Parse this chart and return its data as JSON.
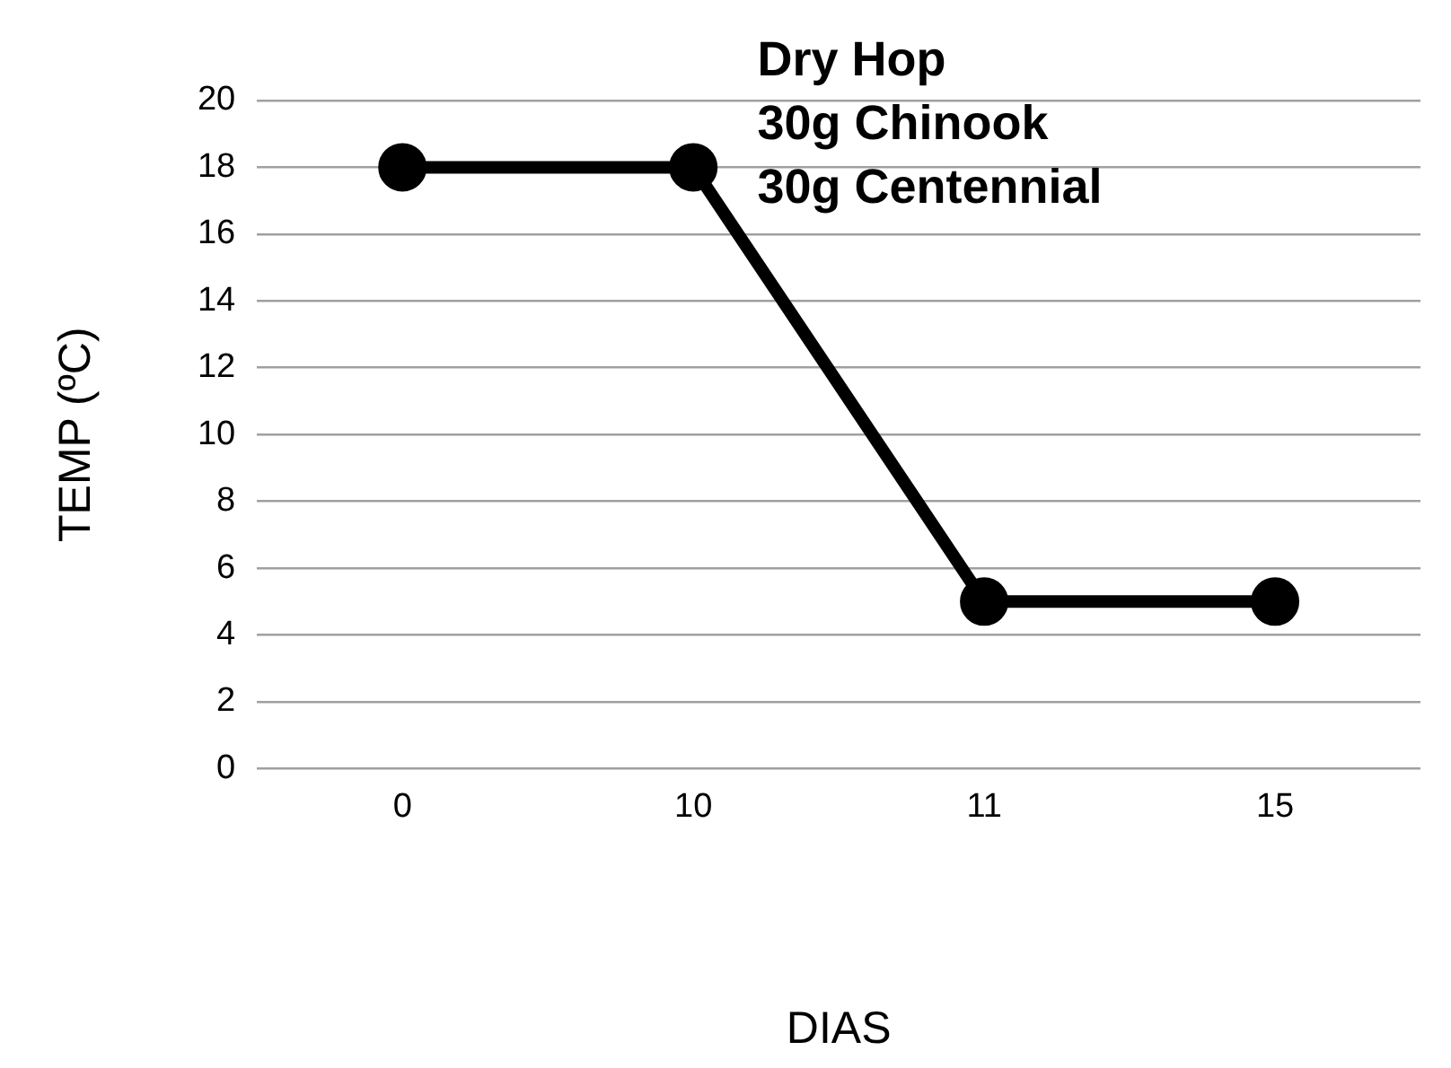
{
  "chart_data": {
    "type": "line",
    "xlabel": "DIAS",
    "ylabel": "TEMP (ºC)",
    "categories": [
      "0",
      "10",
      "11",
      "15"
    ],
    "series": [
      {
        "color": "#000000",
        "values": [
          18,
          18,
          5,
          5
        ]
      }
    ],
    "ylim": [
      0,
      20
    ],
    "yticks": [
      0,
      2,
      4,
      6,
      8,
      10,
      12,
      14,
      16,
      18,
      20
    ],
    "grid": "y",
    "legend": false,
    "marker": "circle",
    "line_style": "solid",
    "annotations": [
      "Dry Hop",
      "30g Chinook",
      "30g Centennial"
    ]
  }
}
